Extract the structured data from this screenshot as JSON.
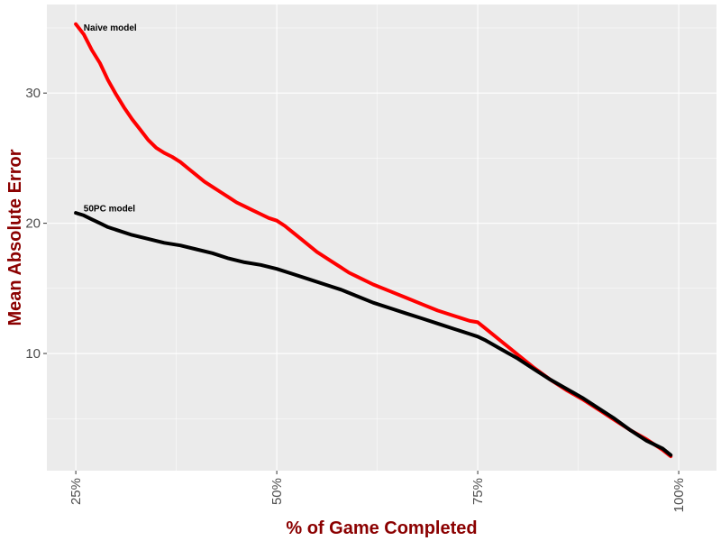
{
  "chart_data": {
    "type": "line",
    "title": "",
    "xlabel": "% of Game Completed",
    "ylabel": "Mean Absolute Error",
    "x_ticks": [
      {
        "value": 25,
        "label": "25%"
      },
      {
        "value": 50,
        "label": "50%"
      },
      {
        "value": 75,
        "label": "75%"
      },
      {
        "value": 100,
        "label": "100%"
      }
    ],
    "y_ticks": [
      {
        "value": 10,
        "label": "10"
      },
      {
        "value": 20,
        "label": "20"
      },
      {
        "value": 30,
        "label": "30"
      }
    ],
    "xlim": [
      21.4,
      104.7
    ],
    "ylim": [
      1.0,
      36.8
    ],
    "grid": true,
    "colors": {
      "panel": "#ebebeb",
      "grid": "#ffffff",
      "axis_title": "#8b0000",
      "tick_label": "#4d4d4d"
    },
    "series": [
      {
        "name": "Naive model",
        "color": "#ff0000",
        "x": [
          25,
          26,
          27,
          28,
          29,
          30,
          31,
          32,
          33,
          34,
          35,
          36,
          37,
          38,
          39,
          40,
          41,
          42,
          43,
          44,
          45,
          46,
          47,
          48,
          49,
          50,
          51,
          52,
          53,
          54,
          55,
          56,
          57,
          58,
          59,
          60,
          62,
          64,
          66,
          68,
          70,
          72,
          74,
          75,
          76,
          78,
          80,
          82,
          84,
          86,
          88,
          90,
          92,
          94,
          96,
          98,
          99
        ],
        "y": [
          35.3,
          34.5,
          33.3,
          32.3,
          31.0,
          29.9,
          28.9,
          28.0,
          27.2,
          26.4,
          25.8,
          25.4,
          25.1,
          24.7,
          24.2,
          23.7,
          23.2,
          22.8,
          22.4,
          22.0,
          21.6,
          21.3,
          21.0,
          20.7,
          20.4,
          20.2,
          19.8,
          19.3,
          18.8,
          18.3,
          17.8,
          17.4,
          17.0,
          16.6,
          16.2,
          15.9,
          15.3,
          14.8,
          14.3,
          13.8,
          13.3,
          12.9,
          12.5,
          12.4,
          11.9,
          10.9,
          9.9,
          8.9,
          8.0,
          7.2,
          6.5,
          5.7,
          4.9,
          4.1,
          3.4,
          2.6,
          2.1
        ]
      },
      {
        "name": "50PC model",
        "color": "#000000",
        "x": [
          25,
          26,
          27,
          28,
          29,
          30,
          32,
          34,
          36,
          38,
          40,
          42,
          44,
          46,
          48,
          50,
          52,
          54,
          56,
          58,
          60,
          62,
          64,
          66,
          68,
          70,
          72,
          74,
          75,
          76,
          78,
          80,
          82,
          84,
          86,
          88,
          90,
          92,
          94,
          96,
          98,
          99
        ],
        "y": [
          20.8,
          20.6,
          20.3,
          20.0,
          19.7,
          19.5,
          19.1,
          18.8,
          18.5,
          18.3,
          18.0,
          17.7,
          17.3,
          17.0,
          16.8,
          16.5,
          16.1,
          15.7,
          15.3,
          14.9,
          14.4,
          13.9,
          13.5,
          13.1,
          12.7,
          12.3,
          11.9,
          11.5,
          11.3,
          11.0,
          10.3,
          9.6,
          8.8,
          8.0,
          7.3,
          6.6,
          5.8,
          5.0,
          4.1,
          3.3,
          2.7,
          2.2
        ]
      }
    ],
    "annotations": [
      {
        "text": "Naive model",
        "x": 25.3,
        "y": 35.0
      },
      {
        "text": "50PC model",
        "x": 25.3,
        "y": 21.1
      }
    ]
  }
}
